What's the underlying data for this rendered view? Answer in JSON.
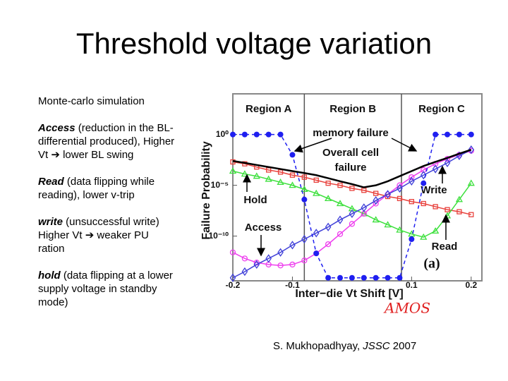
{
  "title": "Threshold voltage variation",
  "body": [
    {
      "text": "Monte-carlo simulation"
    },
    {
      "term": "Access",
      "text": " (reduction in the BL-differential produced), Higher Vt ➔ lower BL swing"
    },
    {
      "term": "Read",
      "text": " (data flipping while reading), lower v-trip"
    },
    {
      "term": "write",
      "text": " (unsuccessful write) Higher Vt ➔ weaker PU ration"
    },
    {
      "term": "hold",
      "text": " (data flipping at a lower supply voltage in standby mode)"
    }
  ],
  "citation": {
    "author": "S. Mukhopadhyay, ",
    "journal": "JSSC",
    "year": " 2007"
  },
  "handwriting": "AMOS",
  "chart_data": {
    "type": "line",
    "xlabel": "Inter−die Vt Shift [V]",
    "ylabel": "Failure Probability",
    "log_y": true,
    "xlim": [
      -0.2,
      0.218
    ],
    "ylim": [
      4e-15,
      10000
    ],
    "xticks": [
      -0.2,
      -0.1,
      0.1,
      0.2
    ],
    "yticks": [
      {
        "value": 1,
        "label": "10⁰"
      },
      {
        "value": 1e-05,
        "label": "10⁻⁵"
      },
      {
        "value": 1e-10,
        "label": "10⁻¹⁰"
      }
    ],
    "regions": [
      {
        "label": "Region A",
        "range": [
          -0.2,
          -0.08
        ]
      },
      {
        "label": "Region B",
        "range": [
          -0.08,
          0.083
        ]
      },
      {
        "label": "Region C",
        "range": [
          0.083,
          0.218
        ]
      }
    ],
    "annotations": [
      "memory failure",
      "Overall cell",
      "failure",
      "Hold",
      "Access",
      "Write",
      "Read",
      "(a)"
    ],
    "x": [
      -0.2,
      -0.18,
      -0.16,
      -0.14,
      -0.12,
      -0.1,
      -0.08,
      -0.06,
      -0.04,
      -0.02,
      0,
      0.02,
      0.04,
      0.06,
      0.08,
      0.1,
      0.12,
      0.14,
      0.16,
      0.18,
      0.2
    ],
    "series": [
      {
        "name": "Read",
        "color": "#e8413c",
        "marker": "square",
        "values": [
          0.002,
          0.0013,
          0.00063,
          0.00032,
          0.0002,
          0.0001,
          6.3e-05,
          3.2e-05,
          1.6e-05,
          1e-05,
          5e-06,
          3.2e-06,
          1.6e-06,
          7.9e-07,
          5e-07,
          2.5e-07,
          1.6e-07,
          7.9e-08,
          4e-08,
          2.5e-08,
          1.3e-08
        ]
      },
      {
        "name": "Hold",
        "color": "#3de03d",
        "marker": "triangle",
        "values": [
          0.00025,
          0.00013,
          7.9e-05,
          4e-05,
          2e-05,
          1e-05,
          4e-06,
          1.6e-06,
          5e-07,
          1.6e-07,
          5e-08,
          1.6e-08,
          4e-09,
          1.3e-09,
          4e-10,
          1.6e-10,
          7.9e-11,
          3.2e-10,
          1e-08,
          4e-07,
          1.6e-05
        ]
      },
      {
        "name": "Write",
        "color": "#ee3fee",
        "marker": "circle",
        "values": [
          2.5e-12,
          6.3e-13,
          2.5e-13,
          1.6e-13,
          1.3e-13,
          1.6e-13,
          4e-13,
          2e-12,
          1.6e-11,
          1.6e-10,
          1.6e-09,
          1.6e-08,
          1.6e-07,
          1.3e-06,
          1e-05,
          6.3e-05,
          0.00032,
          0.0013,
          0.004,
          0.01,
          0.025
        ]
      },
      {
        "name": "Access",
        "color": "#3f3fd8",
        "marker": "diamond",
        "values": [
          7.9e-15,
          3.2e-14,
          1.6e-13,
          6.3e-13,
          2.5e-12,
          1.3e-11,
          5e-11,
          2e-10,
          7.9e-10,
          4e-09,
          1.6e-08,
          6.3e-08,
          3.2e-07,
          1.3e-06,
          5e-06,
          2.5e-05,
          0.0001,
          0.0004,
          0.0016,
          0.0079,
          0.032
        ]
      },
      {
        "name": "memory failure",
        "color": "#1f1ff0",
        "marker": "dot",
        "dashed": true,
        "values": [
          1,
          1,
          1,
          1,
          1,
          0.01,
          4e-07,
          2e-12,
          7.9e-15,
          7.9e-15,
          7.9e-15,
          7.9e-15,
          7.9e-15,
          7.9e-15,
          7.9e-15,
          5e-11,
          1.6e-05,
          1,
          1,
          1,
          1
        ]
      },
      {
        "name": "Overall cell failure",
        "color": "#000000",
        "marker": "none",
        "values": [
          0.0025,
          0.0016,
          0.001,
          0.00063,
          0.0004,
          0.00025,
          0.00016,
          0.0001,
          5e-05,
          2.5e-05,
          1.3e-05,
          6.3e-06,
          1e-05,
          2.5e-05,
          7.9e-05,
          0.00025,
          0.00079,
          0.002,
          0.005,
          0.013,
          0.032
        ]
      }
    ]
  }
}
